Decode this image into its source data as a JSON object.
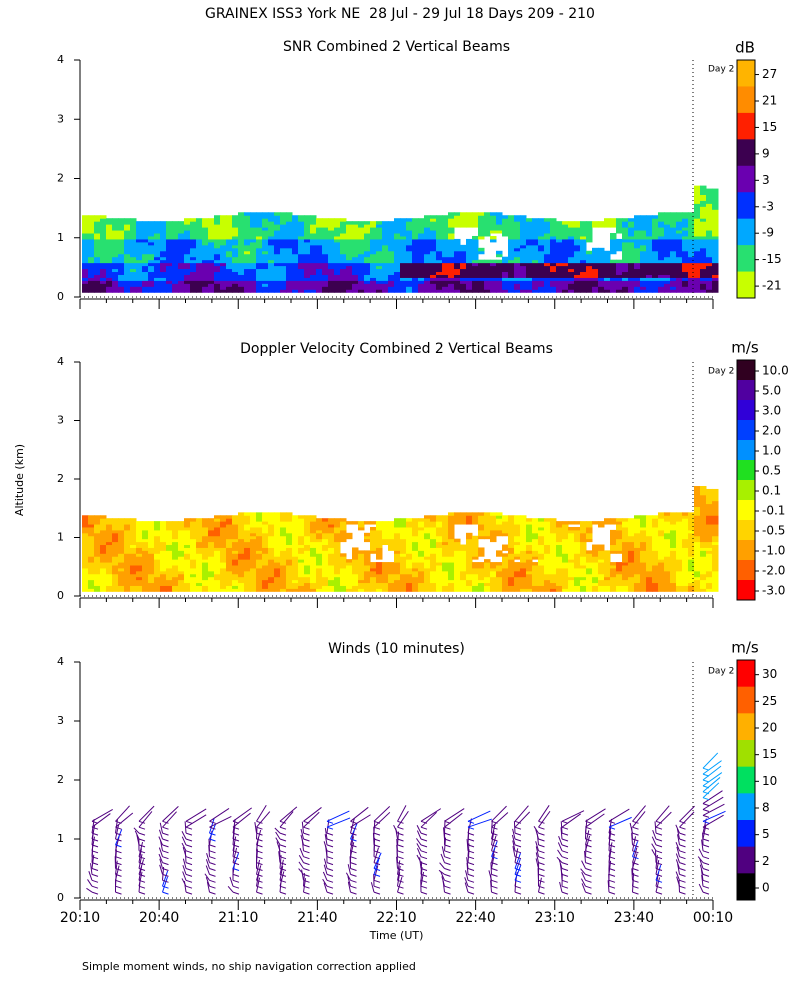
{
  "title": "GRAINEX ISS3 York NE  28 Jul - 29 Jul 18 Days 209 - 210",
  "ylabel": "Altitude (km)",
  "footnote": "Simple moment winds, no ship navigation correction applied",
  "chart_data": [
    {
      "type": "contour",
      "title": "SNR Combined 2 Vertical Beams",
      "annotation": "Day 2",
      "ylim": [
        0,
        4
      ],
      "yticks": [
        0,
        1,
        2,
        3,
        4
      ],
      "colorbar": {
        "unit": "dB",
        "ticks": [
          27,
          21,
          15,
          9,
          3,
          -3,
          -9,
          -15,
          -21
        ],
        "colors": [
          "#ffb400",
          "#ff8c00",
          "#ff2000",
          "#3c0050",
          "#6a00b0",
          "#0030ff",
          "#00a8ff",
          "#28e070",
          "#c8ff00"
        ]
      }
    },
    {
      "type": "contour",
      "title": "Doppler Velocity Combined 2 Vertical Beams",
      "annotation": "Day 2",
      "ylim": [
        0,
        4
      ],
      "yticks": [
        0,
        1,
        2,
        3,
        4
      ],
      "colorbar": {
        "unit": "m/s",
        "ticks": [
          {
            "value": 10,
            "label": "10.0"
          },
          {
            "value": 5,
            "label": "5.0"
          },
          {
            "value": 3,
            "label": "3.0"
          },
          {
            "value": 2,
            "label": "2.0"
          },
          {
            "value": 1,
            "label": "1.0"
          },
          {
            "value": 0.5,
            "label": "0.5"
          },
          {
            "value": 0.1,
            "label": "0.1"
          },
          -0.1,
          -0.5,
          {
            "value": -1,
            "label": "-1.0"
          },
          {
            "value": -2,
            "label": "-2.0"
          },
          {
            "value": -3,
            "label": "-3.0"
          }
        ],
        "colors": [
          "#300020",
          "#5000a0",
          "#3000d8",
          "#0040ff",
          "#0090ff",
          "#20e020",
          "#a8f000",
          "#ffff00",
          "#ffd400",
          "#ffa000",
          "#ff6000",
          "#ff0000"
        ]
      }
    },
    {
      "type": "barbs",
      "title": "Winds (10 minutes)",
      "annotation": "Day 2",
      "ylim": [
        0,
        4
      ],
      "yticks": [
        0,
        1,
        2,
        3,
        4
      ],
      "categories": [
        "20:10",
        "20:40",
        "21:10",
        "21:40",
        "22:10",
        "22:40",
        "23:10",
        "23:40",
        "00:10"
      ],
      "xlabel": "Time (UT)",
      "colorbar": {
        "unit": "m/s",
        "ticks": [
          30,
          25,
          20,
          15,
          10,
          8,
          5,
          2,
          0
        ],
        "colors": [
          "#ff0000",
          "#ff6000",
          "#ffb000",
          "#a0e000",
          "#00e060",
          "#00a0ff",
          "#0020ff",
          "#500080",
          "#000000"
        ]
      }
    }
  ]
}
